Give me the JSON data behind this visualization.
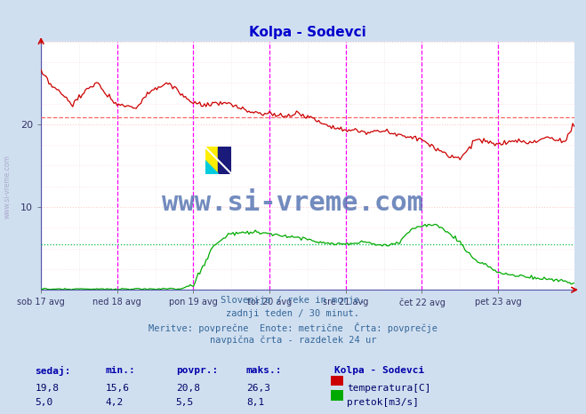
{
  "title": "Kolpa - Sodevci",
  "title_color": "#0000cc",
  "bg_color": "#d0dff0",
  "plot_bg_color": "#ffffff",
  "grid_color_h": "#ffcccc",
  "grid_color_v": "#dddddd",
  "x_tick_labels": [
    "sob 17 avg",
    "ned 18 avg",
    "pon 19 avg",
    "tor 20 avg",
    "sre 21 avg",
    "čet 22 avg",
    "pet 23 avg"
  ],
  "x_ticks_positions": [
    0,
    48,
    96,
    144,
    192,
    240,
    288
  ],
  "n_points": 337,
  "ylim": [
    0,
    30
  ],
  "y_ticks": [
    10,
    20
  ],
  "avg_temp_line": 20.8,
  "avg_flow_line": 5.5,
  "temp_color": "#cc0000",
  "flow_color": "#00aa00",
  "vline_color_solid": "#0000aa",
  "vline_color_dashed": "#ff00ff",
  "avg_line_color_temp": "#ff6666",
  "avg_line_color_flow": "#00bb44",
  "watermark_text": "www.si-vreme.com",
  "watermark_color": "#4466aa",
  "subtitle_lines": [
    "Slovenija / reke in morje.",
    "zadnji teden / 30 minut.",
    "Meritve: povprečne  Enote: metrične  Črta: povprečje",
    "navpična črta - razdelek 24 ur"
  ],
  "subtitle_color": "#336699",
  "legend_title": "Kolpa - Sodevci",
  "legend_items": [
    "temperatura[C]",
    "pretok[m3/s]"
  ],
  "legend_colors": [
    "#cc0000",
    "#00aa00"
  ],
  "table_headers": [
    "sedaj:",
    "min.:",
    "povpr.:",
    "maks.:"
  ],
  "table_temp": [
    "19,8",
    "15,6",
    "20,8",
    "26,3"
  ],
  "table_flow": [
    "5,0",
    "4,2",
    "5,5",
    "8,1"
  ],
  "table_color": "#0000aa",
  "table_data_color": "#000066"
}
